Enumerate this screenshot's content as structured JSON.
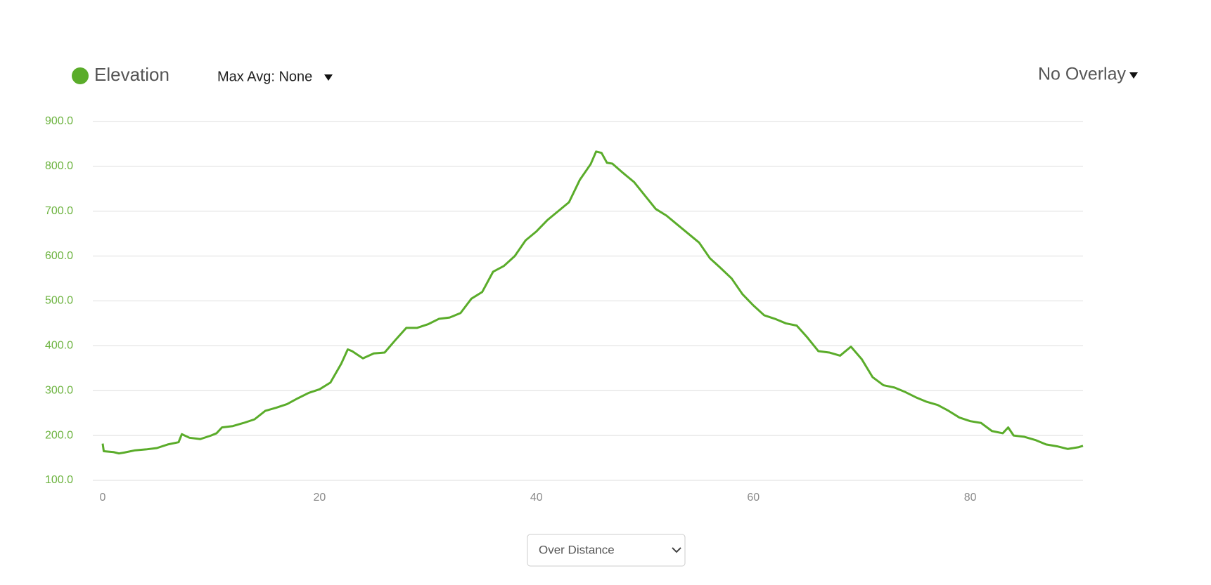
{
  "chart_data": {
    "type": "line",
    "x": [
      0,
      0.1,
      1,
      1.5,
      2,
      3,
      4,
      5,
      6,
      7,
      7.3,
      8,
      9,
      10,
      10.5,
      11,
      12,
      13,
      14,
      15,
      16,
      17,
      18,
      19,
      20,
      21,
      22,
      22.6,
      23,
      24,
      25,
      26,
      27,
      28,
      29,
      30,
      31,
      32,
      33,
      34,
      35,
      36,
      37,
      38,
      39,
      40,
      41,
      42,
      43,
      44,
      45,
      45.5,
      46,
      46.5,
      47,
      48,
      49,
      50,
      51,
      52,
      53,
      54,
      55,
      56,
      57,
      58,
      59,
      60,
      61,
      62,
      63,
      64,
      65,
      66,
      67,
      68,
      69,
      70,
      71,
      72,
      73,
      74,
      75,
      76,
      77,
      78,
      79,
      80,
      81,
      82,
      83,
      83.5,
      84,
      85,
      86,
      87,
      88,
      89,
      90,
      90.4
    ],
    "series": [
      {
        "name": "Elevation",
        "color": "#5aac2a",
        "values": [
          182,
          165,
          163,
          160,
          162,
          167,
          169,
          172,
          180,
          185,
          203,
          195,
          192,
          200,
          205,
          218,
          221,
          228,
          236,
          255,
          262,
          270,
          283,
          295,
          303,
          318,
          360,
          392,
          388,
          372,
          383,
          385,
          413,
          440,
          440,
          448,
          460,
          463,
          473,
          505,
          520,
          565,
          578,
          600,
          635,
          655,
          680,
          700,
          720,
          770,
          805,
          833,
          830,
          808,
          806,
          785,
          765,
          735,
          705,
          690,
          670,
          650,
          630,
          595,
          573,
          550,
          515,
          490,
          468,
          460,
          450,
          445,
          418,
          388,
          385,
          378,
          398,
          370,
          330,
          312,
          307,
          297,
          285,
          275,
          268,
          255,
          240,
          232,
          228,
          210,
          205,
          218,
          200,
          197,
          190,
          180,
          176,
          170,
          174,
          177
        ]
      }
    ],
    "xlim": [
      0,
      90.4
    ],
    "ylim": [
      100,
      900
    ],
    "xticks": [
      0,
      20,
      40,
      60,
      80
    ],
    "yticks": [
      {
        "value": 100,
        "label": "100.0"
      },
      {
        "value": 200,
        "label": "200.0"
      },
      {
        "value": 300,
        "label": "300.0"
      },
      {
        "value": 400,
        "label": "400.0"
      },
      {
        "value": 500,
        "label": "500.0"
      },
      {
        "value": 600,
        "label": "600.0"
      },
      {
        "value": 700,
        "label": "700.0"
      },
      {
        "value": 800,
        "label": "800.0"
      },
      {
        "value": 900,
        "label": "900.0"
      }
    ],
    "grid": true
  },
  "controls": {
    "max_avg": "Max Avg: None",
    "overlay": "No Overlay",
    "x_mode": "Over Distance"
  }
}
